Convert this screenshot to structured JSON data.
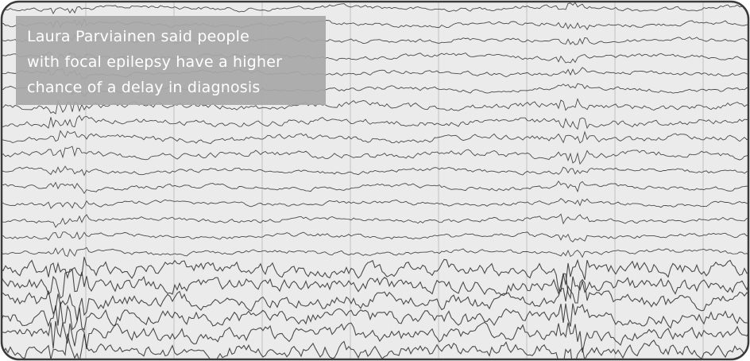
{
  "caption": {
    "lines": [
      "Laura Parviainen said people",
      "with focal epilepsy have a higher",
      "chance of a delay in diagnosis"
    ]
  }
}
